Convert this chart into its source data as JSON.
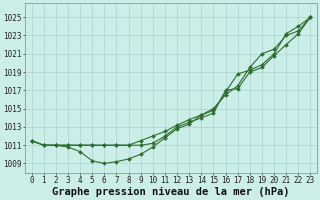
{
  "title": "Graphe pression niveau de la mer (hPa)",
  "background_color": "#cceee8",
  "grid_color": "#aad4ce",
  "line_color": "#2d6e2d",
  "x_labels": [
    "0",
    "1",
    "2",
    "3",
    "4",
    "5",
    "6",
    "7",
    "8",
    "9",
    "10",
    "11",
    "12",
    "13",
    "14",
    "15",
    "16",
    "17",
    "18",
    "19",
    "20",
    "21",
    "22",
    "23"
  ],
  "y_ticks": [
    1009,
    1011,
    1013,
    1015,
    1017,
    1019,
    1021,
    1023,
    1025
  ],
  "ylim": [
    1008.0,
    1026.5
  ],
  "xlim": [
    -0.5,
    23.5
  ],
  "series1": [
    1011.5,
    1011.0,
    1011.0,
    1011.0,
    1011.0,
    1011.0,
    1011.0,
    1011.0,
    1011.0,
    1011.5,
    1012.0,
    1012.5,
    1013.2,
    1013.8,
    1014.3,
    1015.0,
    1016.5,
    1017.5,
    1019.5,
    1021.0,
    1021.5,
    1023.0,
    1023.5,
    1025.0
  ],
  "series2": [
    1011.5,
    1011.0,
    1011.0,
    1010.8,
    1010.3,
    1009.3,
    1009.0,
    1009.2,
    1009.5,
    1010.0,
    1010.8,
    1011.8,
    1012.8,
    1013.3,
    1014.3,
    1014.8,
    1016.8,
    1018.8,
    1019.2,
    1019.8,
    1021.0,
    1023.2,
    1024.0,
    1025.0
  ],
  "series3": [
    1011.5,
    1011.0,
    1011.0,
    1011.0,
    1011.0,
    1011.0,
    1011.0,
    1011.0,
    1011.0,
    1011.0,
    1011.2,
    1012.0,
    1013.0,
    1013.5,
    1014.0,
    1014.5,
    1017.0,
    1017.2,
    1019.0,
    1019.5,
    1020.8,
    1022.0,
    1023.2,
    1025.0
  ],
  "title_fontsize": 7.5,
  "tick_fontsize": 5.5
}
